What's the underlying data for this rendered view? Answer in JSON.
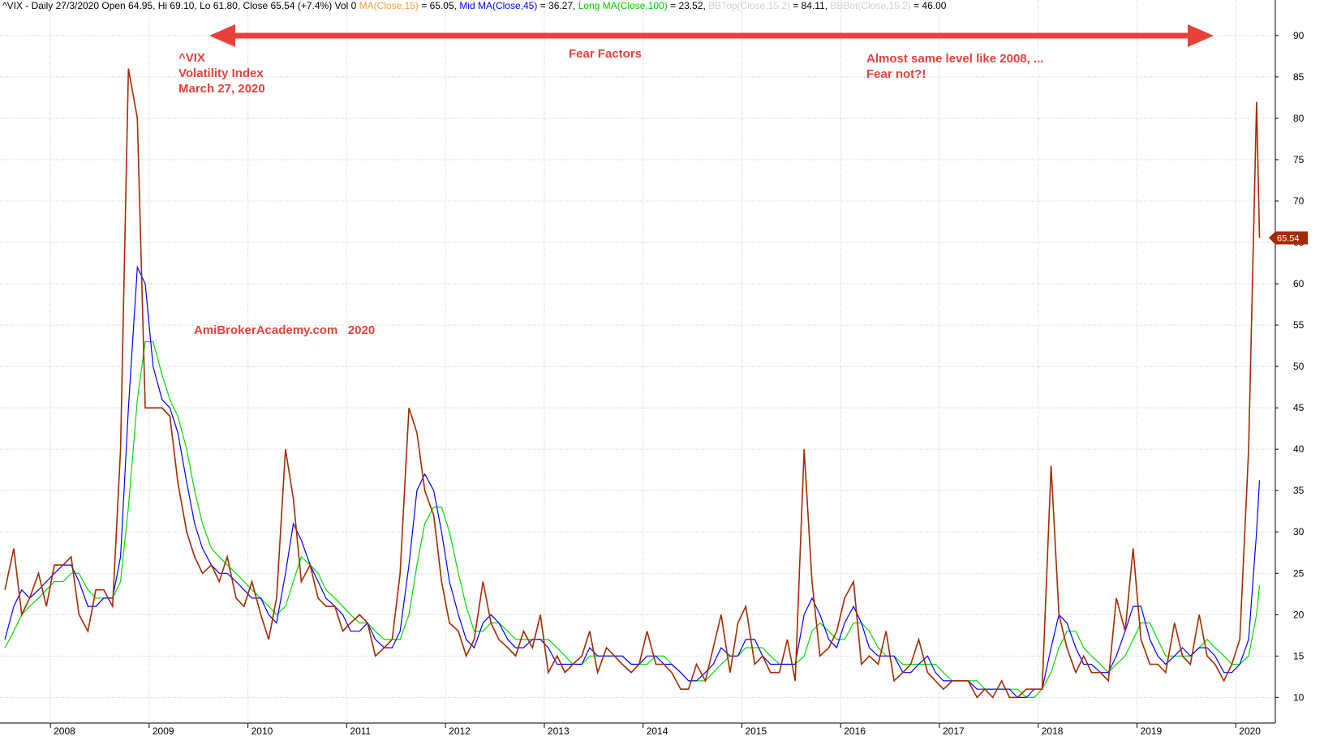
{
  "chart_data": {
    "type": "line",
    "header": [
      {
        "text": "^VIX - Daily 27/3/2020 Open 64.95, Hi 69.10, Lo 61.80, Close 65.54 (+7.4%) Vol 0 ",
        "color": "#000000"
      },
      {
        "text": "MA(Close,15)",
        "color": "#f39c3c"
      },
      {
        "text": " = 65.05, ",
        "color": "#000000"
      },
      {
        "text": "Mid MA(Close,45)",
        "color": "#0000ff"
      },
      {
        "text": " = 36.27, ",
        "color": "#000000"
      },
      {
        "text": "Long MA(Close,100)",
        "color": "#00cc00"
      },
      {
        "text": " = 23.52, ",
        "color": "#000000"
      },
      {
        "text": "BBTop(Close,15,2)",
        "color": "#d0d0d0"
      },
      {
        "text": " = 84.11, ",
        "color": "#000000"
      },
      {
        "text": "BBBot(Close,15,2)",
        "color": "#d0d0d0"
      },
      {
        "text": " = 46.00",
        "color": "#000000"
      }
    ],
    "annotations": [
      "^VIX",
      "Volatility Index",
      "March 27, 2020",
      "Fear Factors",
      "Almost same level like 2008, ...",
      "Fear not?!",
      "AmiBrokerAcademy.com   2020"
    ],
    "xlim": [
      2007.49,
      2020.4
    ],
    "xticks": [
      2008,
      2009,
      2010,
      2011,
      2012,
      2013,
      2014,
      2015,
      2016,
      2017,
      2018,
      2019,
      2020
    ],
    "ylim": [
      6.9,
      94.3
    ],
    "yticks": [
      10,
      15,
      20,
      25,
      30,
      35,
      40,
      45,
      50,
      55,
      60,
      65,
      70,
      75,
      80,
      85,
      90
    ],
    "grid": true,
    "x": [
      2007.54,
      2007.63,
      2007.71,
      2007.79,
      2007.88,
      2007.96,
      2008.04,
      2008.13,
      2008.21,
      2008.29,
      2008.38,
      2008.46,
      2008.54,
      2008.63,
      2008.71,
      2008.79,
      2008.88,
      2008.96,
      2009.04,
      2009.13,
      2009.21,
      2009.29,
      2009.38,
      2009.46,
      2009.54,
      2009.63,
      2009.71,
      2009.79,
      2009.88,
      2009.96,
      2010.04,
      2010.13,
      2010.21,
      2010.29,
      2010.38,
      2010.46,
      2010.54,
      2010.63,
      2010.71,
      2010.79,
      2010.88,
      2010.96,
      2011.04,
      2011.13,
      2011.21,
      2011.29,
      2011.38,
      2011.46,
      2011.54,
      2011.63,
      2011.71,
      2011.79,
      2011.88,
      2011.96,
      2012.04,
      2012.13,
      2012.21,
      2012.29,
      2012.38,
      2012.46,
      2012.54,
      2012.63,
      2012.71,
      2012.79,
      2012.88,
      2012.96,
      2013.04,
      2013.13,
      2013.21,
      2013.29,
      2013.38,
      2013.46,
      2013.54,
      2013.63,
      2013.71,
      2013.79,
      2013.88,
      2013.96,
      2014.04,
      2014.13,
      2014.21,
      2014.29,
      2014.38,
      2014.46,
      2014.54,
      2014.63,
      2014.71,
      2014.79,
      2014.88,
      2014.96,
      2015.04,
      2015.13,
      2015.21,
      2015.29,
      2015.38,
      2015.46,
      2015.54,
      2015.63,
      2015.71,
      2015.79,
      2015.88,
      2015.96,
      2016.04,
      2016.13,
      2016.21,
      2016.29,
      2016.38,
      2016.46,
      2016.54,
      2016.63,
      2016.71,
      2016.79,
      2016.88,
      2016.96,
      2017.04,
      2017.13,
      2017.21,
      2017.29,
      2017.38,
      2017.46,
      2017.54,
      2017.63,
      2017.71,
      2017.79,
      2017.88,
      2017.96,
      2018.04,
      2018.13,
      2018.21,
      2018.29,
      2018.38,
      2018.46,
      2018.54,
      2018.63,
      2018.71,
      2018.79,
      2018.88,
      2018.96,
      2019.04,
      2019.13,
      2019.21,
      2019.29,
      2019.38,
      2019.46,
      2019.54,
      2019.63,
      2019.71,
      2019.79,
      2019.88,
      2019.96,
      2020.04,
      2020.13,
      2020.21,
      2020.24
    ],
    "series": [
      {
        "name": "Close",
        "color": "#a52a00",
        "values": [
          23,
          28,
          20,
          22,
          25,
          21,
          26,
          26,
          27,
          20,
          18,
          23,
          23,
          21,
          40,
          86,
          80,
          45,
          45,
          45,
          44,
          36,
          30,
          27,
          25,
          26,
          24,
          27,
          22,
          21,
          24,
          20,
          17,
          22,
          40,
          34,
          24,
          26,
          22,
          21,
          21,
          18,
          19,
          20,
          19,
          15,
          16,
          17,
          25,
          45,
          42,
          35,
          32,
          24,
          19,
          18,
          15,
          17,
          24,
          19,
          17,
          16,
          15,
          18,
          16,
          20,
          13,
          15,
          13,
          14,
          15,
          18,
          13,
          16,
          15,
          14,
          13,
          14,
          18,
          14,
          14,
          13,
          11,
          11,
          14,
          12,
          16,
          20,
          13,
          19,
          21,
          14,
          15,
          13,
          13,
          17,
          12,
          40,
          24,
          15,
          16,
          18,
          22,
          24,
          14,
          15,
          14,
          18,
          12,
          13,
          14,
          17,
          13,
          12,
          11,
          12,
          12,
          12,
          10,
          11,
          10,
          12,
          10,
          10,
          11,
          11,
          11,
          38,
          20,
          16,
          13,
          15,
          13,
          13,
          12,
          22,
          18,
          28,
          17,
          14,
          14,
          13,
          19,
          15,
          14,
          20,
          15,
          14,
          12,
          14,
          17,
          40,
          82,
          65.54
        ]
      },
      {
        "name": "Mid MA(Close,45)",
        "color": "#0000ff",
        "values": [
          17,
          21,
          23,
          22,
          23,
          24,
          25,
          26,
          26,
          24,
          21,
          21,
          22,
          22,
          27,
          45,
          62,
          60,
          50,
          46,
          45,
          42,
          36,
          31,
          28,
          26,
          25,
          25,
          24,
          23,
          22,
          22,
          20,
          19,
          25,
          31,
          29,
          26,
          24,
          22,
          21,
          20,
          18,
          18,
          19,
          17,
          16,
          16,
          18,
          26,
          35,
          37,
          35,
          30,
          24,
          20,
          17,
          16,
          19,
          20,
          19,
          17,
          16,
          16,
          17,
          17,
          16,
          14,
          14,
          14,
          14,
          16,
          15,
          15,
          15,
          15,
          14,
          14,
          15,
          15,
          14,
          14,
          13,
          12,
          12,
          13,
          14,
          16,
          15,
          15,
          17,
          17,
          15,
          14,
          14,
          14,
          14,
          20,
          22,
          20,
          17,
          16,
          19,
          21,
          19,
          16,
          15,
          15,
          15,
          13,
          13,
          14,
          15,
          13,
          12,
          12,
          12,
          12,
          11,
          11,
          11,
          11,
          11,
          10,
          10,
          11,
          11,
          16,
          20,
          19,
          16,
          14,
          14,
          13,
          13,
          15,
          18,
          21,
          21,
          17,
          15,
          14,
          15,
          16,
          15,
          16,
          16,
          15,
          13,
          13,
          14,
          17,
          30,
          36.27
        ]
      },
      {
        "name": "Long MA(Close,100)",
        "color": "#00dd00",
        "values": [
          16,
          18,
          20,
          21,
          22,
          23,
          24,
          24,
          25,
          25,
          23,
          22,
          22,
          22,
          24,
          33,
          46,
          53,
          53,
          49,
          46,
          44,
          40,
          35,
          31,
          28,
          27,
          26,
          25,
          24,
          23,
          22,
          21,
          20,
          21,
          24,
          27,
          26,
          25,
          23,
          22,
          21,
          20,
          19,
          19,
          18,
          17,
          17,
          17,
          20,
          26,
          31,
          33,
          33,
          30,
          25,
          21,
          18,
          18,
          19,
          19,
          18,
          17,
          17,
          17,
          17,
          17,
          16,
          15,
          14,
          14,
          15,
          15,
          15,
          15,
          15,
          14,
          14,
          14,
          15,
          15,
          14,
          13,
          12,
          12,
          12,
          13,
          14,
          15,
          15,
          16,
          16,
          16,
          15,
          14,
          14,
          14,
          15,
          18,
          19,
          18,
          17,
          17,
          19,
          19,
          18,
          16,
          15,
          15,
          14,
          14,
          14,
          14,
          14,
          13,
          12,
          12,
          12,
          12,
          11,
          11,
          11,
          11,
          11,
          10,
          10,
          11,
          13,
          16,
          18,
          18,
          16,
          15,
          14,
          13,
          14,
          15,
          17,
          19,
          19,
          17,
          15,
          15,
          15,
          15,
          16,
          17,
          16,
          15,
          14,
          14,
          15,
          20,
          23.52
        ]
      }
    ]
  }
}
